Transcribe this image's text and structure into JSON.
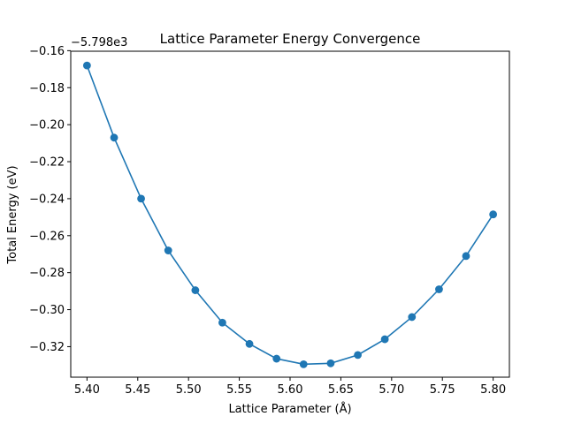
{
  "chart_data": {
    "type": "line",
    "title": "Lattice Parameter Energy Convergence",
    "xlabel": "Lattice Parameter (Å)",
    "ylabel": "Total Energy (eV)",
    "y_offset_label": "−5.798e3",
    "xlim": [
      5.384,
      5.816
    ],
    "ylim": [
      -0.3365,
      -0.1603
    ],
    "x_ticks": [
      5.4,
      5.45,
      5.5,
      5.55,
      5.6,
      5.65,
      5.7,
      5.75,
      5.8
    ],
    "x_tick_labels": [
      "5.40",
      "5.45",
      "5.50",
      "5.55",
      "5.60",
      "5.65",
      "5.70",
      "5.75",
      "5.80"
    ],
    "y_ticks": [
      -0.16,
      -0.18,
      -0.2,
      -0.22,
      -0.24,
      -0.26,
      -0.28,
      -0.3,
      -0.32
    ],
    "y_tick_labels": [
      "−0.16",
      "−0.18",
      "−0.20",
      "−0.22",
      "−0.24",
      "−0.26",
      "−0.28",
      "−0.30",
      "−0.32"
    ],
    "grid": false,
    "line_color": "#1f77b4",
    "series": [
      {
        "x": [
          5.4,
          5.4267,
          5.4533,
          5.48,
          5.5067,
          5.5333,
          5.56,
          5.5867,
          5.6133,
          5.64,
          5.6667,
          5.6933,
          5.72,
          5.7467,
          5.7733,
          5.8
        ],
        "y": [
          -0.168,
          -0.207,
          -0.24,
          -0.268,
          -0.2895,
          -0.307,
          -0.3185,
          -0.3265,
          -0.3295,
          -0.329,
          -0.3245,
          -0.316,
          -0.304,
          -0.289,
          -0.271,
          -0.2485
        ]
      }
    ]
  }
}
